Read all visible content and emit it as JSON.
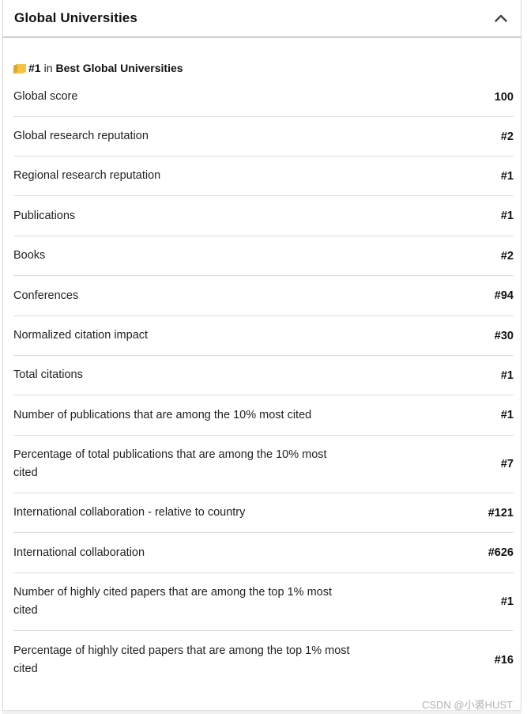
{
  "header": {
    "title": "Global Universities"
  },
  "rank": {
    "rank_text": "#1",
    "in_text": "in",
    "list_name": "Best Global Universities"
  },
  "rows": [
    {
      "label": "Global score",
      "value": "100"
    },
    {
      "label": "Global research reputation",
      "value": "#2"
    },
    {
      "label": "Regional research reputation",
      "value": "#1"
    },
    {
      "label": "Publications",
      "value": "#1"
    },
    {
      "label": "Books",
      "value": "#2"
    },
    {
      "label": "Conferences",
      "value": "#94"
    },
    {
      "label": "Normalized citation impact",
      "value": "#30"
    },
    {
      "label": "Total citations",
      "value": "#1"
    },
    {
      "label": "Number of publications that are among the 10% most cited",
      "value": "#1"
    },
    {
      "label": "Percentage of total publications that are among the 10% most cited",
      "value": "#7"
    },
    {
      "label": "International collaboration - relative to country",
      "value": "#121"
    },
    {
      "label": "International collaboration",
      "value": "#626"
    },
    {
      "label": "Number of highly cited papers that are among the top 1% most cited",
      "value": "#1"
    },
    {
      "label": "Percentage of highly cited papers that are among the top 1% most cited",
      "value": "#16"
    }
  ],
  "watermark": "CSDN @小裘HUST",
  "colors": {
    "badge": "#f5c242",
    "divider": "#dcdcdc"
  }
}
